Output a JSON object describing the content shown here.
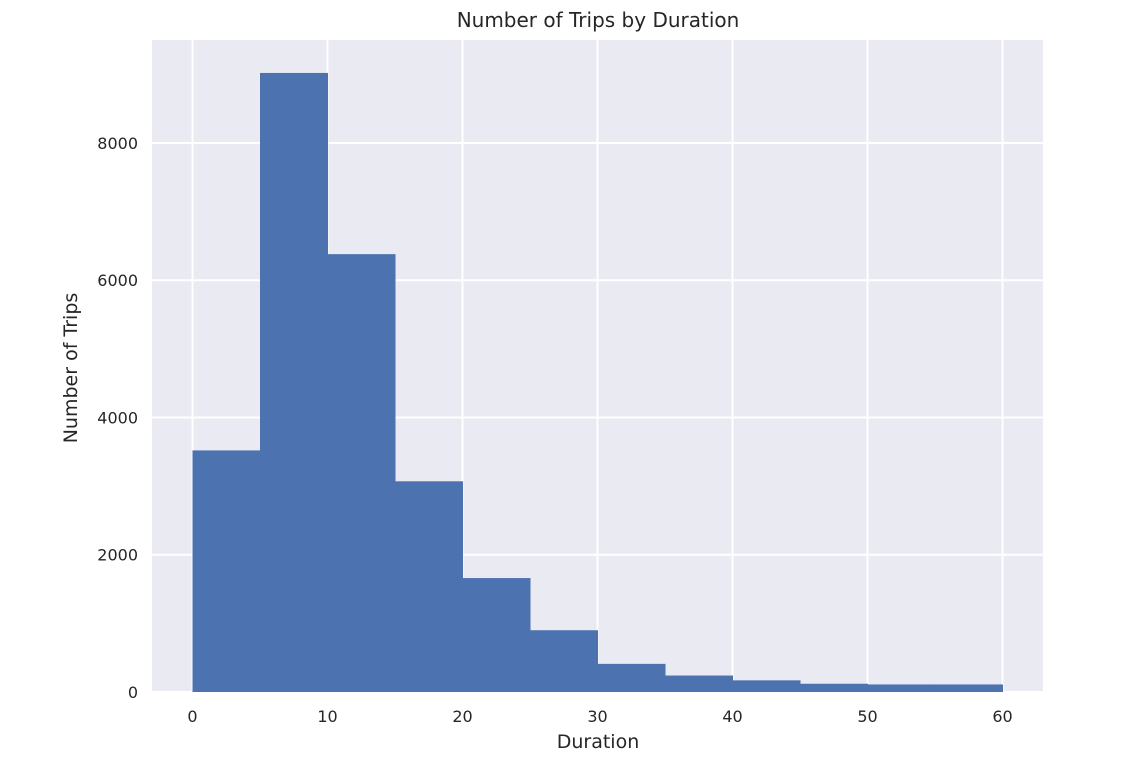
{
  "chart_data": {
    "type": "bar",
    "subtype": "histogram",
    "title": "Number of Trips by Duration",
    "xlabel": "Duration",
    "ylabel": "Number of Trips",
    "bin_edges": [
      0,
      5,
      10,
      15,
      20,
      25,
      30,
      35,
      40,
      45,
      50,
      55,
      60
    ],
    "values": [
      3520,
      9020,
      6380,
      3070,
      1660,
      900,
      410,
      240,
      170,
      120,
      110,
      110
    ],
    "xlim": [
      -3,
      63
    ],
    "ylim": [
      0,
      9500
    ],
    "xticks": [
      0,
      10,
      20,
      30,
      40,
      50,
      60
    ],
    "yticks": [
      0,
      2000,
      4000,
      6000,
      8000
    ],
    "grid": true,
    "colors": {
      "bar": "#4c72b0",
      "background": "#eaeaf2",
      "grid": "#ffffff"
    }
  }
}
